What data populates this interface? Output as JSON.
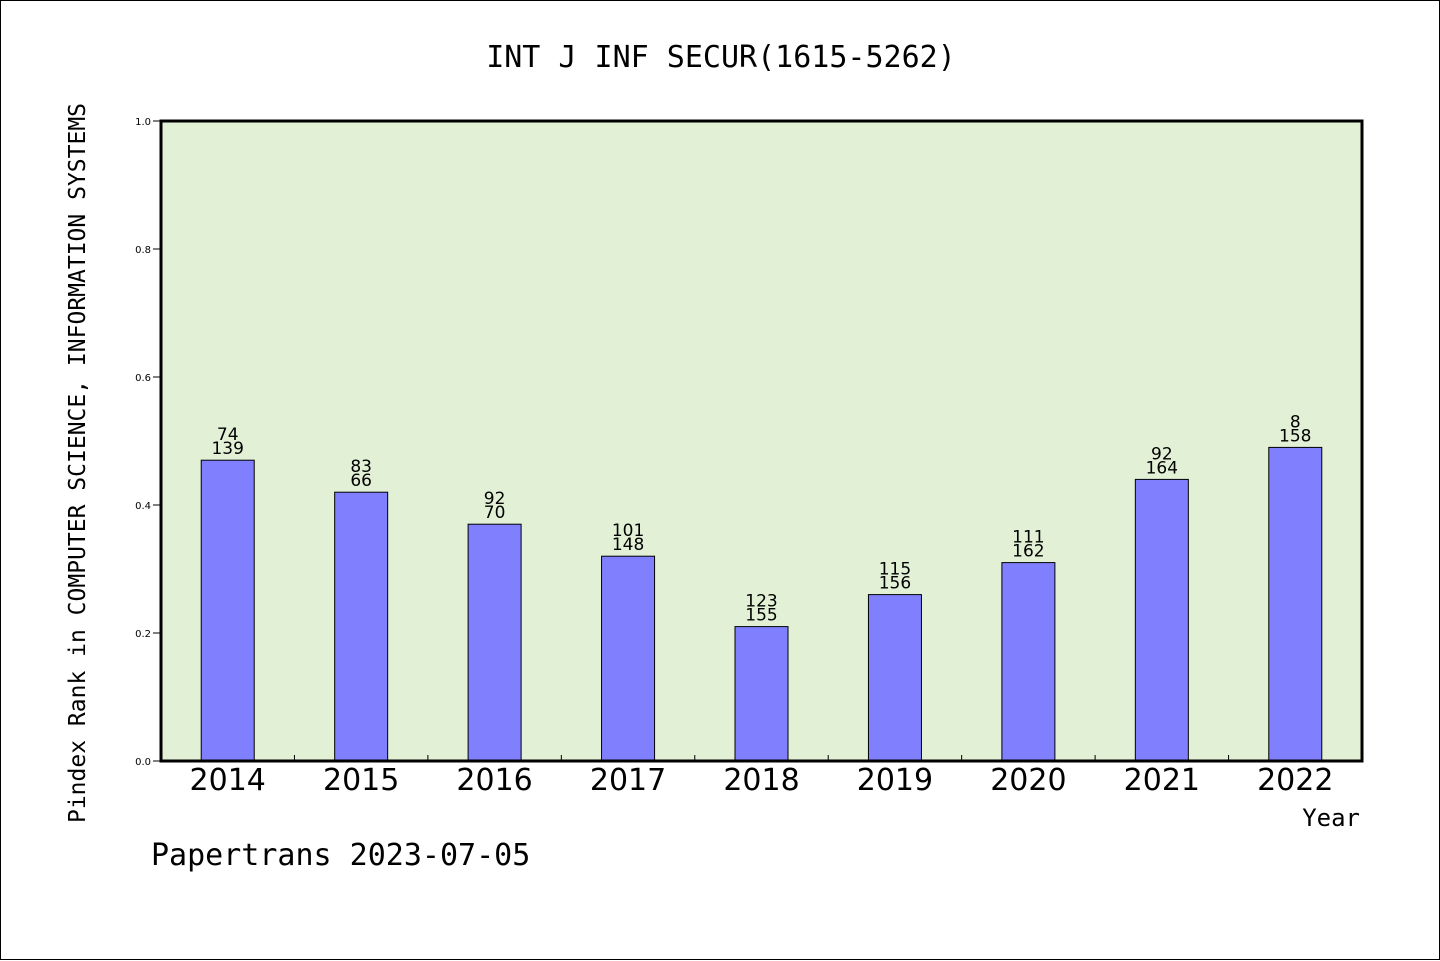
{
  "chart_data": {
    "type": "bar",
    "title": "INT J INF SECUR(1615-5262)",
    "xlabel": "Year",
    "ylabel": "Pindex Rank in COMPUTER SCIENCE, INFORMATION SYSTEMS",
    "categories": [
      "2014",
      "2015",
      "2016",
      "2017",
      "2018",
      "2019",
      "2020",
      "2021",
      "2022"
    ],
    "values": [
      0.47,
      0.42,
      0.37,
      0.32,
      0.21,
      0.26,
      0.31,
      0.44,
      0.49
    ],
    "bar_labels_top": [
      "74",
      "83",
      "92",
      "101",
      "123",
      "115",
      "111",
      "92",
      "8"
    ],
    "bar_labels_bottom": [
      "139",
      "66",
      "70",
      "148",
      "155",
      "156",
      "162",
      "164",
      "158"
    ],
    "ylim": [
      0,
      1.0
    ],
    "yticks": [
      "0.0",
      "0.2",
      "0.4",
      "0.6",
      "0.8",
      "1.0"
    ],
    "grid": false,
    "colors": {
      "bar": "#8080ff",
      "plot_background": "#e2f0d6",
      "axis": "#000000"
    }
  },
  "footer": "Papertrans 2023-07-05"
}
